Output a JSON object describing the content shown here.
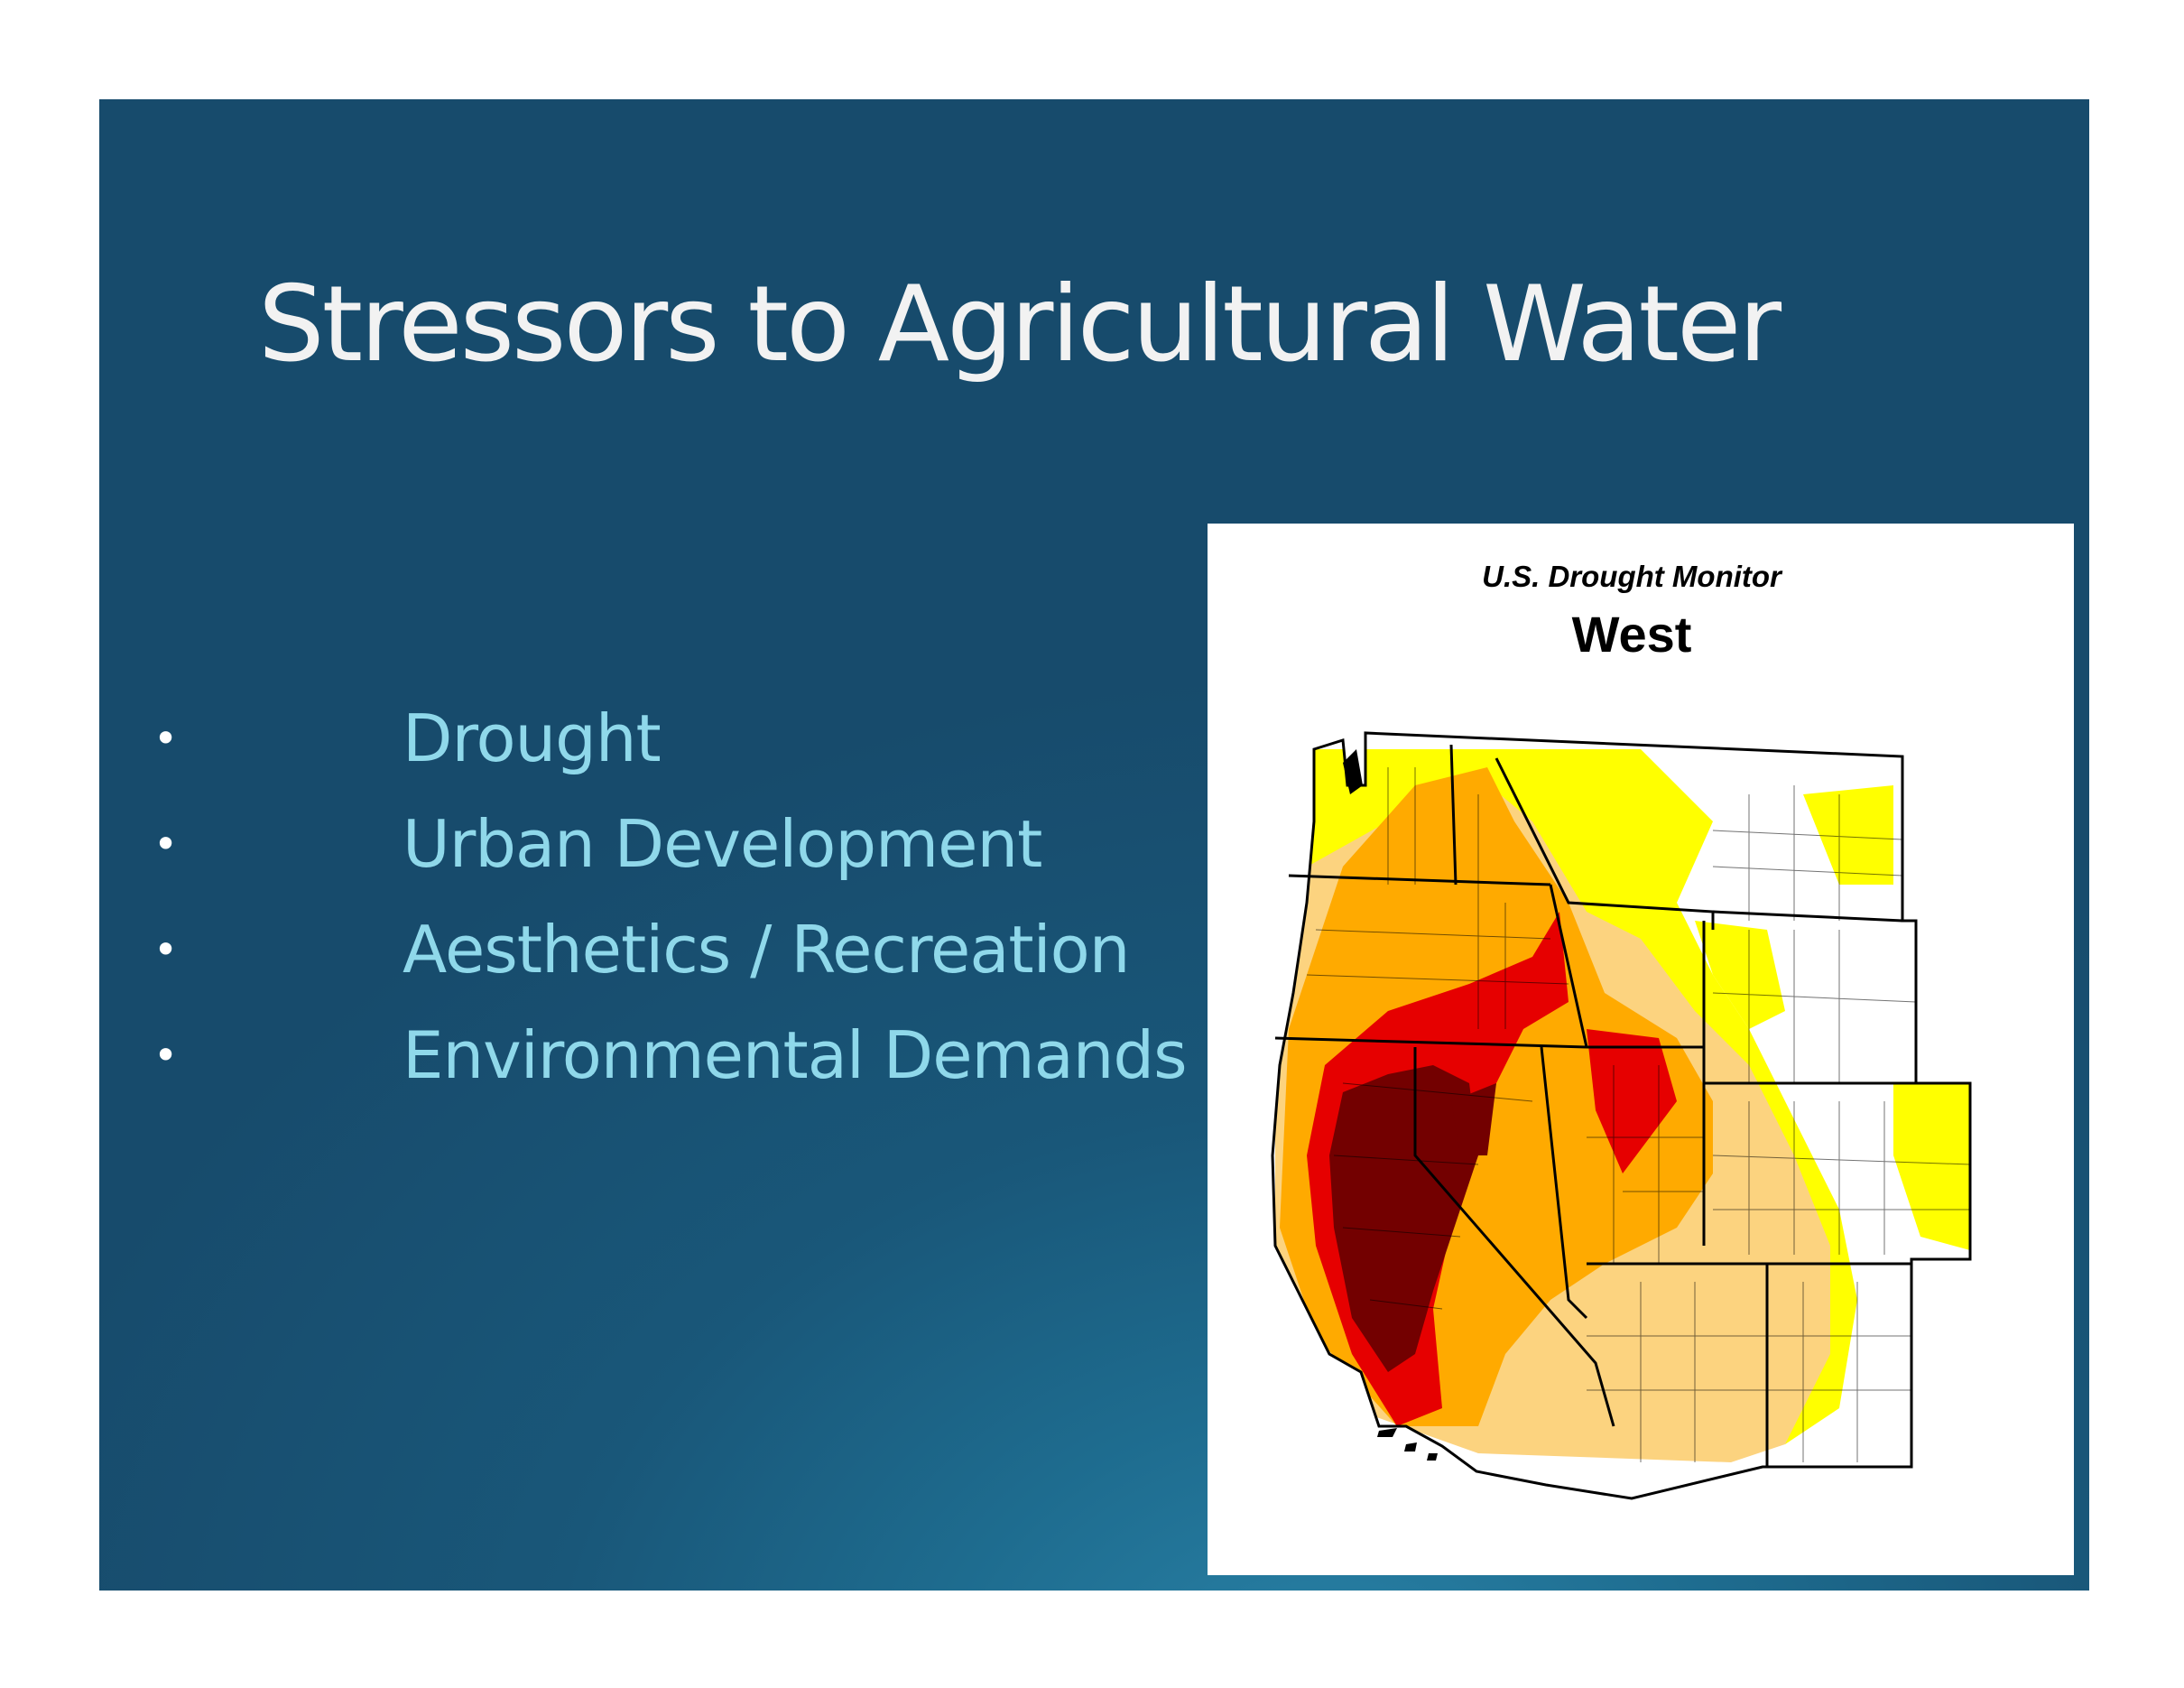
{
  "slide": {
    "title": "Stressors to Agricultural Water",
    "bullet_symbol": "•",
    "bullets": [
      "Drought",
      "Urban Development",
      "Aesthetics / Recreation",
      "Environmental Demands"
    ]
  },
  "map": {
    "subtitle": "U.S. Drought Monitor",
    "title": "West",
    "drought_colors": {
      "none": "#ffffff",
      "abnormally_dry": "#ffff00",
      "moderate": "#fcd37f",
      "severe": "#ffaa00",
      "extreme": "#e60000",
      "exceptional": "#730000"
    }
  },
  "theme": {
    "slide_background": "#195779",
    "title_color": "#f2f2f2",
    "bullet_text_color": "#8fd8ea"
  }
}
